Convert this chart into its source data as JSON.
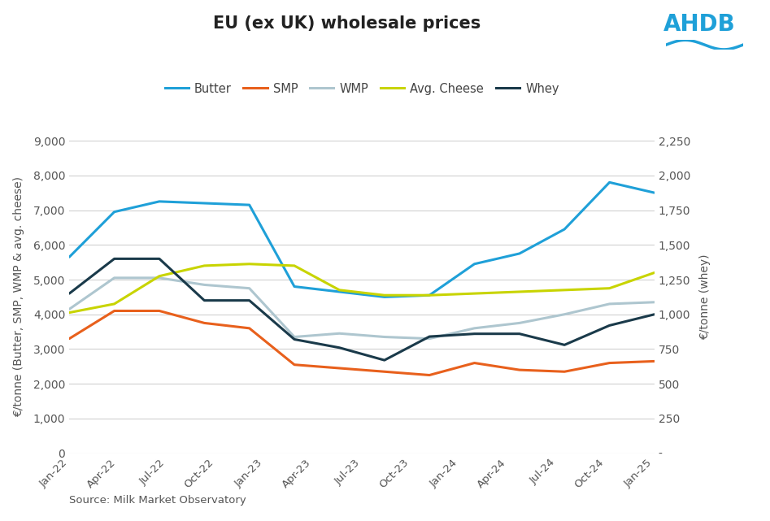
{
  "title": "EU (ex UK) wholesale prices",
  "source": "Source: Milk Market Observatory",
  "ylabel_left": "€/tonne (Butter, SMP, WMP & avg. cheese)",
  "ylabel_right": "€/tonne (whey)",
  "xlabels": [
    "Jan-22",
    "Apr-22",
    "Jul-22",
    "Oct-22",
    "Jan-23",
    "Apr-23",
    "Jul-23",
    "Oct-23",
    "Jan-24",
    "Apr-24",
    "Jul-24",
    "Oct-24",
    "Jan-25"
  ],
  "ylim_left": [
    0,
    9000
  ],
  "ylim_right": [
    0,
    2250
  ],
  "yticks_left": [
    0,
    1000,
    2000,
    3000,
    4000,
    5000,
    6000,
    7000,
    8000,
    9000
  ],
  "ytick_labels_left": [
    "0",
    "1,000",
    "2,000",
    "3,000",
    "4,000",
    "5,000",
    "6,000",
    "7,000",
    "8,000",
    "9,000"
  ],
  "yticks_right": [
    0,
    250,
    500,
    750,
    1000,
    1250,
    1500,
    1750,
    2000,
    2250
  ],
  "ytick_labels_right": [
    "-",
    "250",
    "500",
    "750",
    "1,000",
    "1,250",
    "1,500",
    "1,750",
    "2,000",
    "2,250"
  ],
  "series": {
    "Butter": {
      "color": "#1fa0d8",
      "values": [
        5650,
        6950,
        7250,
        7200,
        7150,
        4800,
        4650,
        4500,
        4550,
        5450,
        5750,
        6450,
        7800,
        7500
      ]
    },
    "SMP": {
      "color": "#e8601c",
      "values": [
        3300,
        4100,
        4100,
        3750,
        3600,
        2550,
        2450,
        2350,
        2250,
        2600,
        2400,
        2350,
        2600,
        2650
      ]
    },
    "WMP": {
      "color": "#aec6cf",
      "values": [
        4150,
        5050,
        5050,
        4850,
        4750,
        3350,
        3450,
        3350,
        3300,
        3600,
        3750,
        4000,
        4300,
        4350
      ]
    },
    "Avg. Cheese": {
      "color": "#c8d400",
      "values": [
        4050,
        4300,
        5100,
        5400,
        5450,
        5400,
        4700,
        4550,
        4550,
        4600,
        4650,
        4700,
        4750,
        5200
      ]
    },
    "Whey": {
      "color": "#1a3a4a",
      "values": [
        1150,
        1400,
        1400,
        1100,
        1100,
        820,
        760,
        670,
        840,
        860,
        860,
        780,
        920,
        1000
      ]
    }
  },
  "background_color": "#ffffff",
  "grid_color": "#d0d0d0",
  "ahdb_color": "#1fa0d8"
}
